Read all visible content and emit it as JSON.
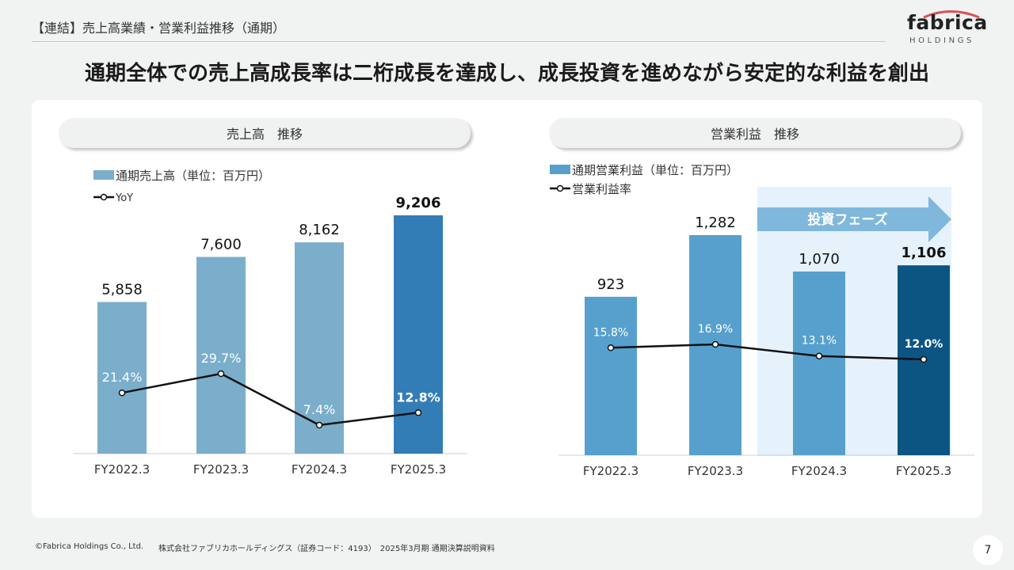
{
  "header": {
    "section_tag": "【連結】売上高業績・営業利益推移（通期）",
    "headline": "通期全体での売上高成長率は二桁成長を達成し、成長投資を進めながら安定的な利益を創出"
  },
  "logo": {
    "word": "fabrica",
    "sub": "HOLDINGS"
  },
  "left_panel": {
    "pill": "売上高　推移",
    "legend_bar": "通期売上高（単位：百万円）",
    "legend_line": "YoY"
  },
  "right_panel": {
    "pill": "営業利益　推移",
    "legend_bar": "通期営業利益（単位：百万円）",
    "legend_line": "営業利益率",
    "phase_label": "投資フェーズ"
  },
  "colors": {
    "bar_light": "#7aaecb",
    "bar_dark": "#337db7",
    "bar_op": "#57a0cd",
    "bar_op_dark": "#0c5583",
    "phase_bg": "#e5f2fc",
    "phase_arrow": "#80b8dc"
  },
  "chart_data": [
    {
      "type": "bar",
      "title": "売上高　推移",
      "categories": [
        "FY2022.3",
        "FY2023.3",
        "FY2024.3",
        "FY2025.3"
      ],
      "series": [
        {
          "name": "通期売上高（単位：百万円）",
          "values": [
            5858,
            7600,
            8162,
            9206
          ],
          "labels": [
            "5,858",
            "7,600",
            "8,162",
            "9,206"
          ]
        },
        {
          "name": "YoY",
          "type": "line",
          "values": [
            21.4,
            29.7,
            7.4,
            12.8
          ],
          "labels": [
            "21.4%",
            "29.7%",
            "7.4%",
            "12.8%"
          ]
        }
      ],
      "ylim": [
        0,
        10000
      ],
      "grid": false,
      "legend_position": "top-left"
    },
    {
      "type": "bar",
      "title": "営業利益　推移",
      "categories": [
        "FY2022.3",
        "FY2023.3",
        "FY2024.3",
        "FY2025.3"
      ],
      "series": [
        {
          "name": "通期営業利益（単位：百万円）",
          "values": [
            923,
            1282,
            1070,
            1106
          ],
          "labels": [
            "923",
            "1,282",
            "1,070",
            "1,106"
          ]
        },
        {
          "name": "営業利益率",
          "type": "line",
          "values": [
            15.8,
            16.9,
            13.1,
            12.0
          ],
          "labels": [
            "15.8%",
            "16.9%",
            "13.1%",
            "12.0%"
          ]
        }
      ],
      "annotation": "投資フェーズ",
      "ylim": [
        0,
        1500
      ],
      "grid": false,
      "legend_position": "top-left"
    }
  ],
  "footer": {
    "copyright": "©Fabrica Holdings Co., Ltd.",
    "info": "株式会社ファブリカホールディングス（証券コード：4193）　2025年3月期 通期決算説明資料",
    "page": "7"
  }
}
